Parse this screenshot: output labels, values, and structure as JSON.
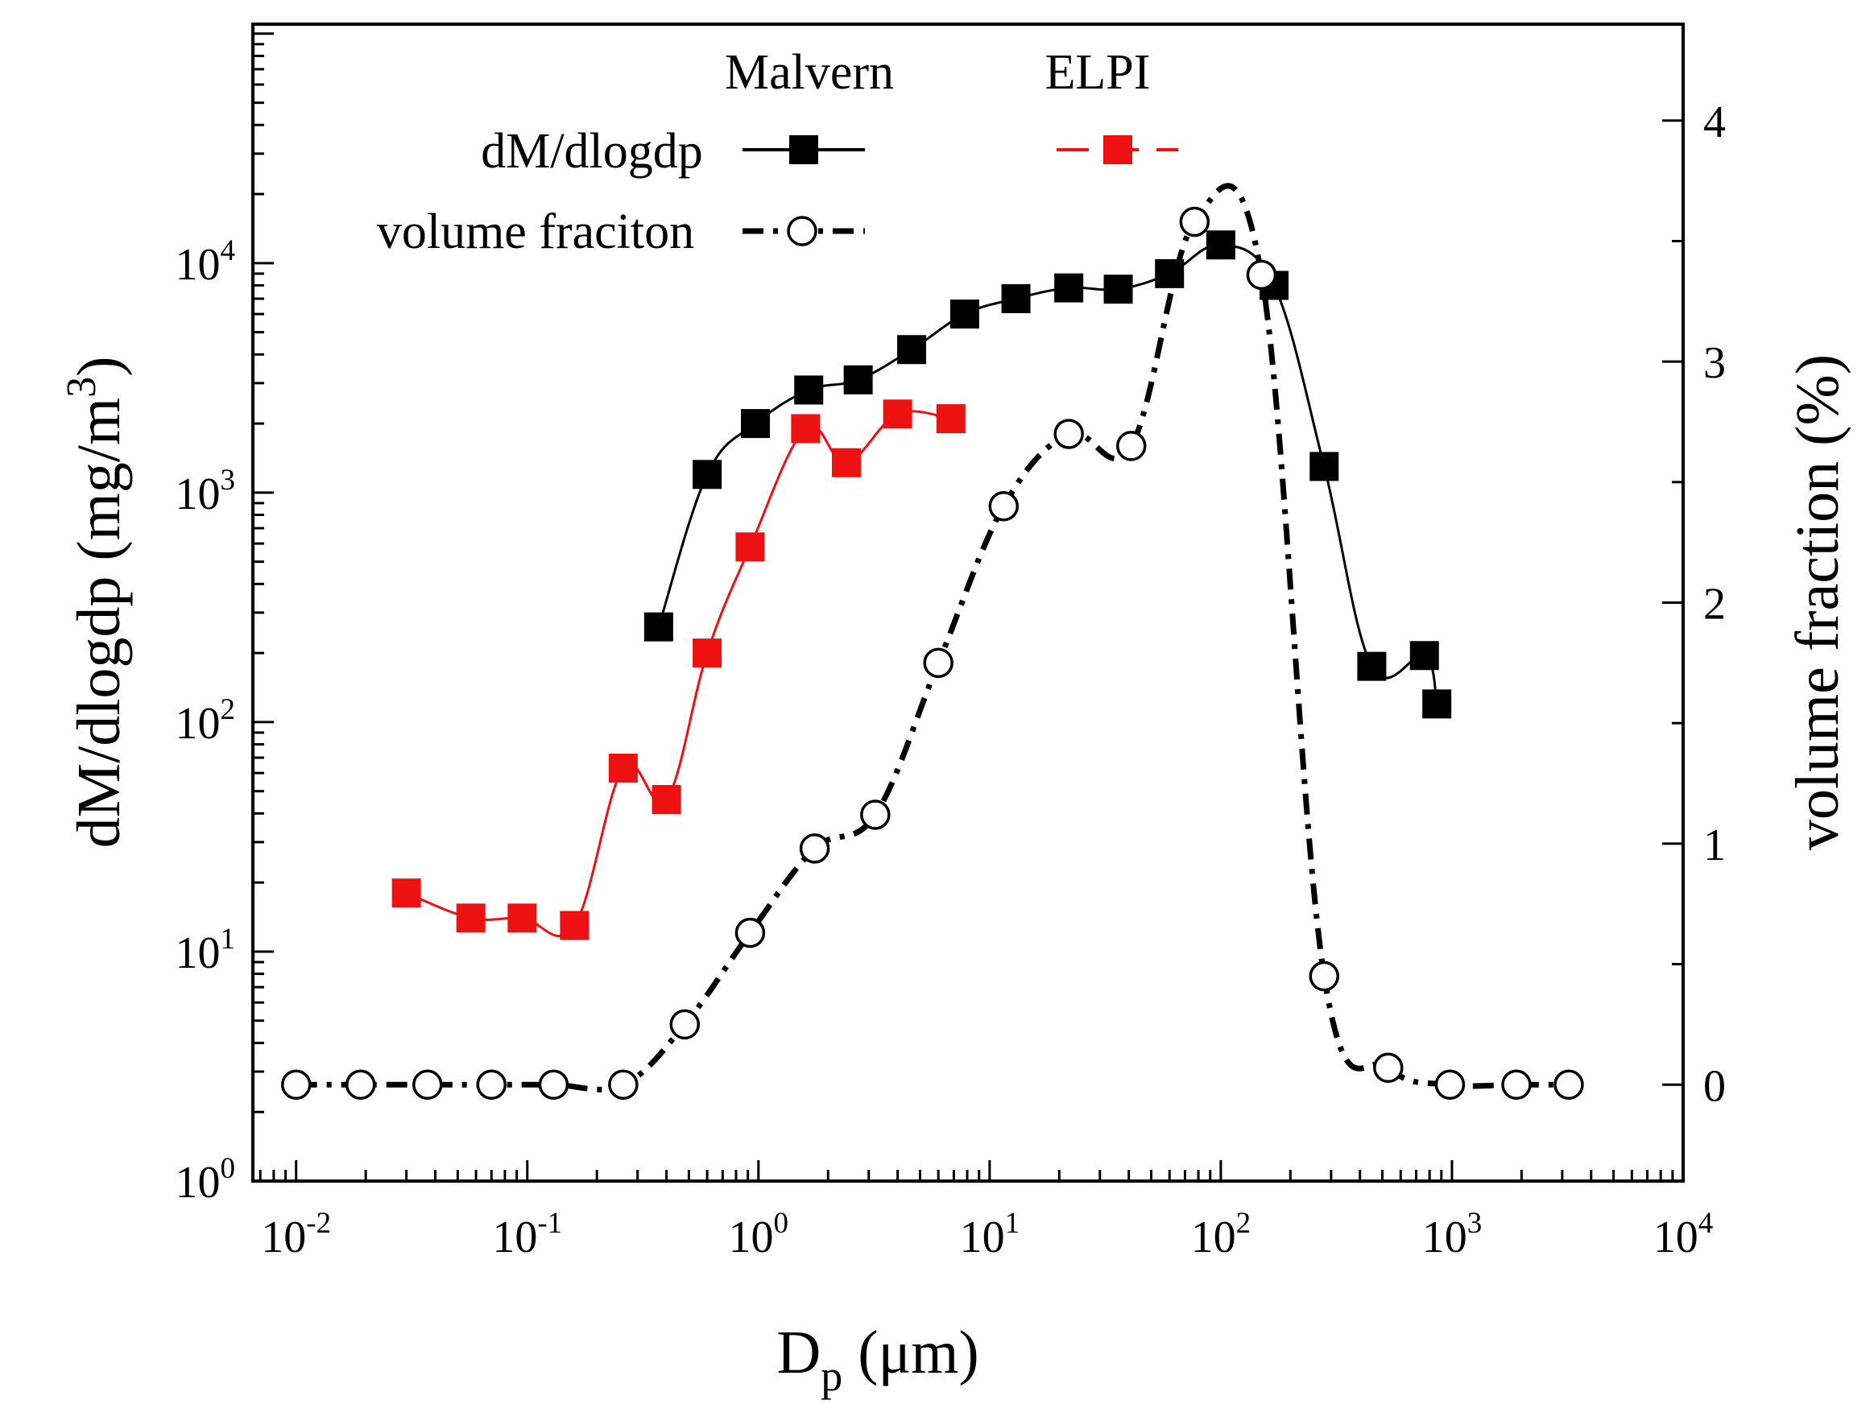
{
  "chart_data": {
    "type": "line",
    "title": "",
    "xlabel": {
      "main": "D",
      "sub": "p",
      "rest": " (μm)"
    },
    "ylabel_left": {
      "main": "dM/dlogdp (mg/m",
      "sup": "3",
      "rest": ")"
    },
    "ylabel_right": "volume fraction (%)",
    "x_scale": "log",
    "xlim": [
      0.0065,
      10000
    ],
    "x_ticks": [
      {
        "base": "10",
        "exp": "-2",
        "value": 0.01
      },
      {
        "base": "10",
        "exp": "-1",
        "value": 0.1
      },
      {
        "base": "10",
        "exp": "0",
        "value": 1
      },
      {
        "base": "10",
        "exp": "1",
        "value": 10
      },
      {
        "base": "10",
        "exp": "2",
        "value": 100
      },
      {
        "base": "10",
        "exp": "3",
        "value": 1000
      },
      {
        "base": "10",
        "exp": "4",
        "value": 10000
      }
    ],
    "y_left_scale": "log",
    "y_left_lim": [
      1,
      110000
    ],
    "y_left_ticks": [
      {
        "base": "10",
        "exp": "0",
        "value": 1
      },
      {
        "base": "10",
        "exp": "1",
        "value": 10
      },
      {
        "base": "10",
        "exp": "2",
        "value": 100
      },
      {
        "base": "10",
        "exp": "3",
        "value": 1000
      },
      {
        "base": "10",
        "exp": "4",
        "value": 10000
      }
    ],
    "y_right_scale": "linear",
    "y_right_lim": [
      -0.4,
      4.4
    ],
    "y_right_ticks": [
      "0",
      "1",
      "2",
      "3",
      "4"
    ],
    "legend": {
      "position": "top-left",
      "col_headers": [
        "Malvern",
        "ELPI"
      ],
      "row_labels": [
        "dM/dlogdp",
        "volume fraciton"
      ]
    },
    "series": [
      {
        "name": "Malvern dM/dlogdp",
        "axis": "left",
        "marker": "filled-square",
        "color": "#000000",
        "line_style": "solid",
        "x": [
          0.37,
          0.6,
          0.97,
          1.65,
          2.7,
          4.6,
          7.8,
          13,
          22,
          36,
          60,
          100,
          170,
          280,
          450,
          760,
          860
        ],
        "y": [
          260,
          1200,
          2000,
          2800,
          3100,
          4200,
          6000,
          7000,
          7800,
          7700,
          9000,
          12000,
          8000,
          1300,
          175,
          195,
          120
        ]
      },
      {
        "name": "ELPI dM/dlogdp",
        "axis": "left",
        "marker": "filled-square",
        "color": "#ee1111",
        "line_style": "solid",
        "x": [
          0.03,
          0.057,
          0.095,
          0.16,
          0.26,
          0.4,
          0.6,
          0.92,
          1.6,
          2.4,
          4.0,
          6.8
        ],
        "y": [
          18,
          14,
          14,
          13,
          63,
          46,
          200,
          580,
          1900,
          1350,
          2200,
          2100
        ]
      },
      {
        "name": "Malvern volume fraction",
        "axis": "right",
        "marker": "open-circle",
        "color": "#000000",
        "line_style": "dash-dot",
        "x": [
          0.01,
          0.019,
          0.037,
          0.07,
          0.13,
          0.26,
          0.48,
          0.92,
          1.75,
          3.2,
          6.0,
          11.5,
          22,
          41,
          77,
          150,
          280,
          530,
          980,
          1900,
          3200
        ],
        "y": [
          0,
          0,
          0,
          0,
          0,
          0,
          0.25,
          0.63,
          0.98,
          1.12,
          1.75,
          2.4,
          2.7,
          2.65,
          3.58,
          3.36,
          0.45,
          0.07,
          0,
          0,
          0
        ]
      }
    ]
  }
}
